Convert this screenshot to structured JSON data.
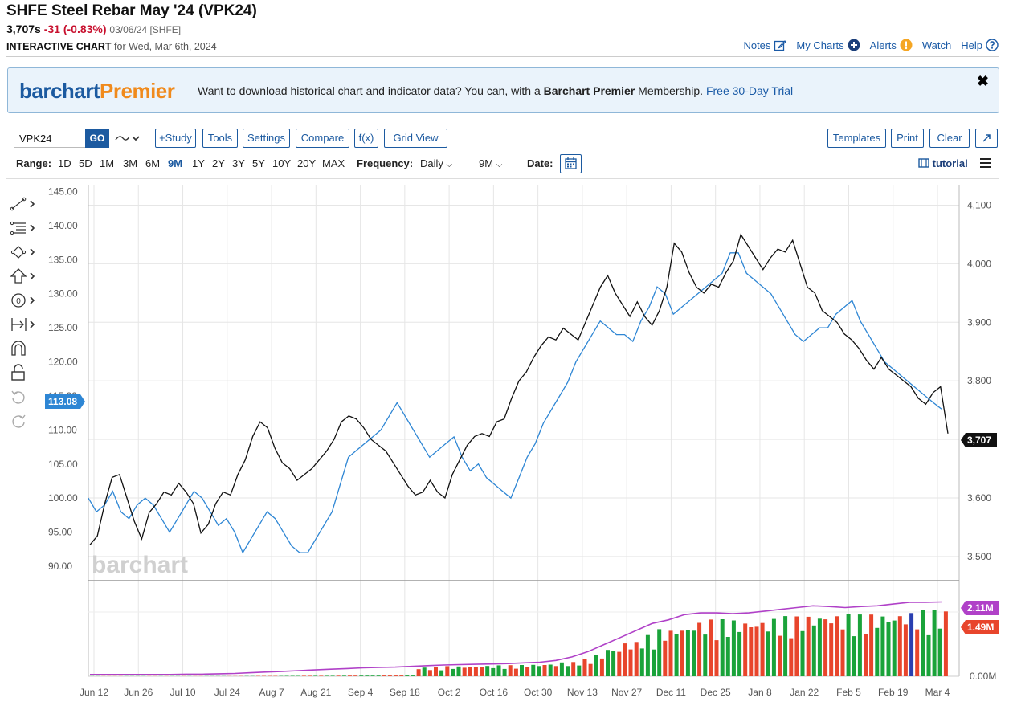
{
  "header": {
    "title": "SHFE Steel Rebar May '24 (VPK24)",
    "last": "3,707s",
    "change": "-31 (-0.83%)",
    "meta": "03/06/24 [SHFE]",
    "interactive_label": "INTERACTIVE CHART",
    "interactive_date": "for Wed, Mar 6th, 2024"
  },
  "toplinks": {
    "notes": "Notes",
    "my_charts": "My Charts",
    "alerts": "Alerts",
    "watch": "Watch",
    "help": "Help"
  },
  "banner": {
    "logo_part1": "barchart",
    "logo_part2": "Premier",
    "text_pre": "Want to download historical chart and indicator data? You can, with a",
    "text_bold": "Barchart Premier",
    "text_post": "Membership.",
    "link": "Free 30-Day Trial",
    "close": "✖"
  },
  "toolbar": {
    "symbol": "VPK24",
    "go": "GO",
    "study": "+Study",
    "tools": "Tools",
    "settings": "Settings",
    "compare": "Compare",
    "fx": "f(x)",
    "grid_view": "Grid View",
    "templates": "Templates",
    "print": "Print",
    "clear": "Clear"
  },
  "range": {
    "label": "Range:",
    "options": [
      "1D",
      "5D",
      "1M",
      "3M",
      "6M",
      "9M",
      "1Y",
      "2Y",
      "3Y",
      "5Y",
      "10Y",
      "20Y",
      "MAX"
    ],
    "active": "9M",
    "frequency_label": "Frequency:",
    "frequency": "Daily",
    "period": "9M",
    "date_label": "Date:",
    "tutorial": "tutorial"
  },
  "icons": {
    "notes": "pencil-square-icon",
    "my_charts": "plus-circle-icon",
    "alerts": "exclamation-circle-icon",
    "help": "question-circle-icon",
    "calendar": "calendar-icon",
    "menu": "hamburger-menu-icon",
    "tools": [
      "line-draw-icon",
      "fib-retracement-icon",
      "shape-icon",
      "arrow-icon",
      "annotation-icon",
      "measure-icon",
      "magnet-icon",
      "lock-icon",
      "undo-icon",
      "redo-icon"
    ]
  },
  "chart_data": {
    "type": "line",
    "watermark": "barchart",
    "x_ticks": [
      "Jun 12",
      "Jun 26",
      "Jul 10",
      "Jul 24",
      "Aug 7",
      "Aug 21",
      "Sep 4",
      "Sep 18",
      "Oct 2",
      "Oct 16",
      "Oct 30",
      "Nov 13",
      "Nov 27",
      "Dec 11",
      "Dec 25",
      "Jan 8",
      "Jan 22",
      "Feb 5",
      "Feb 19",
      "Mar 4"
    ],
    "left_axis": {
      "ticks": [
        "145.00",
        "140.00",
        "135.00",
        "130.00",
        "125.00",
        "120.00",
        "115.00",
        "110.00",
        "105.00",
        "100.00",
        "95.00",
        "90.00"
      ],
      "range": [
        88,
        146
      ],
      "current_label": "113.08"
    },
    "right_axis": {
      "ticks": [
        "4,100",
        "4,000",
        "3,900",
        "3,800",
        "3,700",
        "3,600",
        "3,500"
      ],
      "range": [
        3460,
        4135
      ],
      "current_label": "3,707"
    },
    "volume_axis": {
      "ticks": [
        "0.00M"
      ],
      "labels": [
        "2.11M",
        "1.49M"
      ],
      "range": [
        0,
        2.6
      ]
    },
    "colors": {
      "price": "#111111",
      "compare": "#2e86d4",
      "vol_up": "#1aa33a",
      "vol_down": "#e8452c",
      "vol_special": "#2a3fb0",
      "oi_line": "#b041c8",
      "current_tag": "#111111",
      "compare_tag": "#2e86d4",
      "oi_tag": "#b041c8",
      "vol_tag": "#e8452c"
    },
    "series": [
      {
        "axis": "right",
        "values": [
          3520,
          3535,
          3590,
          3635,
          3640,
          3600,
          3560,
          3530,
          3575,
          3590,
          3610,
          3605,
          3625,
          3610,
          3590,
          3540,
          3555,
          3590,
          3610,
          3605,
          3640,
          3665,
          3705,
          3730,
          3720,
          3685,
          3660,
          3650,
          3630,
          3640,
          3650,
          3665,
          3680,
          3700,
          3730,
          3740,
          3735,
          3720,
          3700,
          3690,
          3680,
          3660,
          3640,
          3620,
          3605,
          3610,
          3630,
          3610,
          3600,
          3640,
          3665,
          3690,
          3705,
          3710,
          3705,
          3730,
          3735,
          3770,
          3800,
          3815,
          3840,
          3860,
          3875,
          3870,
          3890,
          3880,
          3870,
          3900,
          3930,
          3960,
          3980,
          3950,
          3930,
          3910,
          3935,
          3910,
          3895,
          3920,
          3960,
          4035,
          4020,
          3985,
          3960,
          3950,
          3965,
          3960,
          3985,
          4005,
          4050,
          4030,
          4010,
          3990,
          4010,
          4025,
          4020,
          4040,
          4000,
          3960,
          3950,
          3920,
          3910,
          3900,
          3880,
          3870,
          3855,
          3835,
          3820,
          3840,
          3820,
          3810,
          3800,
          3790,
          3770,
          3760,
          3780,
          3790,
          3710
        ],
        "note": "VPK24 daily price (right axis, digitized)"
      },
      {
        "axis": "left",
        "values": [
          100,
          98,
          99,
          101,
          98,
          97,
          99,
          100,
          99,
          97,
          95,
          97,
          99,
          101,
          100,
          98,
          96,
          97,
          95,
          92,
          94,
          96,
          98,
          97,
          95,
          93,
          92,
          92,
          94,
          96,
          98,
          102,
          106,
          107,
          108,
          109,
          110,
          112,
          114,
          112,
          110,
          108,
          106,
          107,
          108,
          109,
          106,
          104,
          105,
          103,
          102,
          101,
          100,
          103,
          106,
          108,
          111,
          113,
          115,
          117,
          120,
          122,
          124,
          126,
          125,
          124,
          124,
          123,
          126,
          128,
          131,
          130,
          127,
          128,
          129,
          130,
          131,
          132,
          133,
          136,
          136,
          133,
          132,
          131,
          130,
          128,
          126,
          124,
          123,
          124,
          125,
          125,
          127,
          128,
          129,
          126,
          124,
          122,
          120,
          119,
          118,
          117,
          116,
          115,
          114,
          113.08
        ],
        "note": "Comparison series (left axis, digitized)"
      }
    ],
    "volume": {
      "note": "Daily volume bars (millions) and open interest line",
      "oi": [
        0.05,
        0.05,
        0.05,
        0.05,
        0.05,
        0.05,
        0.06,
        0.06,
        0.07,
        0.08,
        0.1,
        0.12,
        0.14,
        0.16,
        0.18,
        0.2,
        0.22,
        0.24,
        0.25,
        0.26,
        0.28,
        0.3,
        0.32,
        0.33,
        0.34,
        0.35,
        0.36,
        0.38,
        0.4,
        0.45,
        0.55,
        0.7,
        0.9,
        1.1,
        1.3,
        1.5,
        1.6,
        1.75,
        1.8,
        1.8,
        1.78,
        1.8,
        1.85,
        1.9,
        1.95,
        2.0,
        1.98,
        1.95,
        1.98,
        2.0,
        2.05,
        2.1,
        2.1,
        2.11
      ],
      "last_vol": 1.49,
      "last_oi": 2.11
    }
  }
}
